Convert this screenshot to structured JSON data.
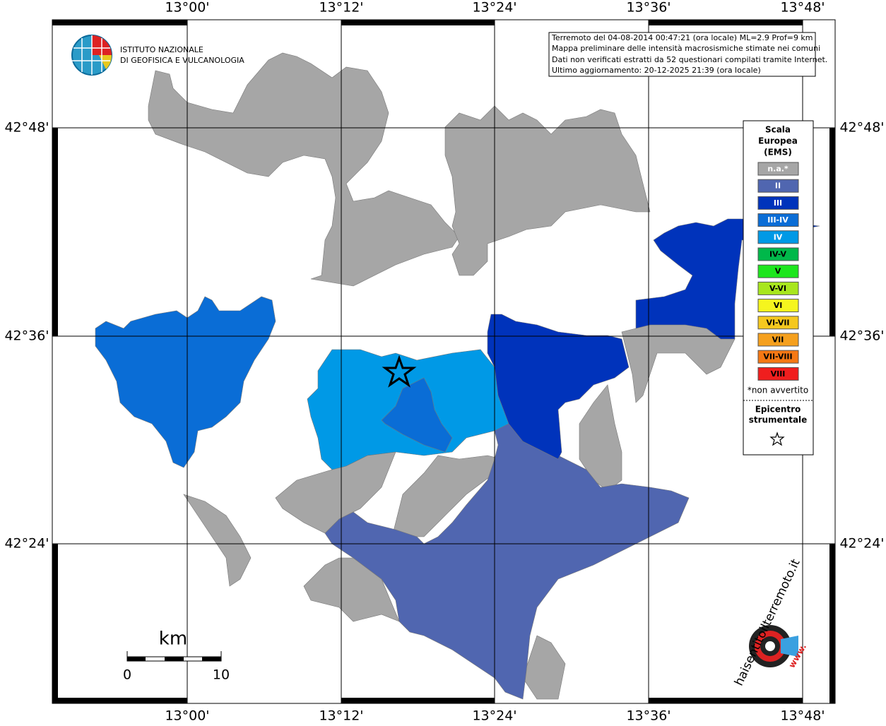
{
  "axes": {
    "top": [
      "13°00'",
      "13°12'",
      "13°24'",
      "13°36'",
      "13°48'"
    ],
    "bottom": [
      "13°00'",
      "13°12'",
      "13°24'",
      "13°36'",
      "13°48'"
    ],
    "left": [
      "42°48'",
      "42°36'",
      "42°24'"
    ],
    "right": [
      "42°48'",
      "42°36'",
      "42°24'"
    ]
  },
  "info": [
    "Terremoto del 04-08-2014 00:47:21 (ora locale) ML=2.9 Prof=9 km",
    "Mappa preliminare delle intensità macrosismiche stimate nei comuni",
    "Dati non verificati estratti da 52 questionari compilati tramite Internet.",
    "Ultimo aggiornamento: 20-12-2025 21:39 (ora locale)"
  ],
  "logo": {
    "line1": "ISTITUTO NAZIONALE",
    "line2": "DI GEOFISICA E VULCANOLOGIA"
  },
  "legend": {
    "title": [
      "Scala",
      "Europea",
      "(EMS)"
    ],
    "items": [
      {
        "label": "n.a.*",
        "color": "#a6a6a6"
      },
      {
        "label": "II",
        "color": "#5066b0"
      },
      {
        "label": "III",
        "color": "#0033bb"
      },
      {
        "label": "III-IV",
        "color": "#0a6dd6"
      },
      {
        "label": "IV",
        "color": "#0099e6"
      },
      {
        "label": "IV-V",
        "color": "#00b84a"
      },
      {
        "label": "V",
        "color": "#1ee61e"
      },
      {
        "label": "V-VI",
        "color": "#a8e61e"
      },
      {
        "label": "VI",
        "color": "#f5f51e"
      },
      {
        "label": "VI-VII",
        "color": "#f5c81e"
      },
      {
        "label": "VII",
        "color": "#f5a01e"
      },
      {
        "label": "VII-VIII",
        "color": "#f57814"
      },
      {
        "label": "VIII",
        "color": "#f01e1e"
      }
    ],
    "note": "*non avvertito",
    "epicenter": [
      "Epicentro",
      "strumentale"
    ]
  },
  "scale": {
    "unit": "km",
    "start": "0",
    "end": "10"
  },
  "site": {
    "name": "haisentitoilterremoto.it",
    "prefix": "www."
  }
}
